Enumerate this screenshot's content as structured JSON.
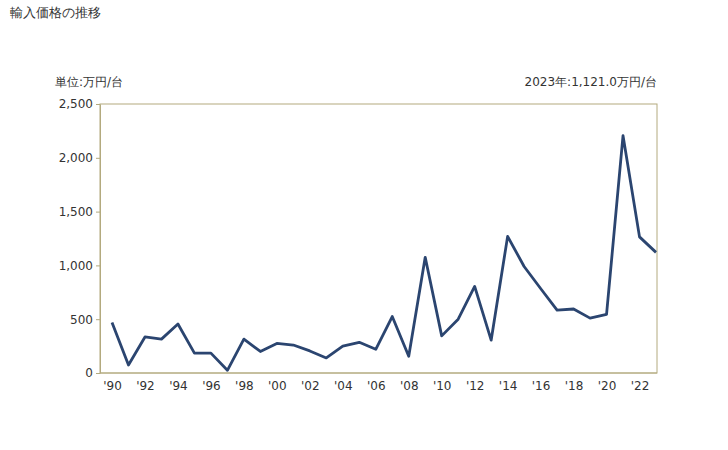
{
  "chart_data": {
    "type": "line",
    "title": "輸入価格の推移",
    "y_label": "単位:万円/台",
    "annotation": "2023年:1,121.0万円/台",
    "categories": [
      "'90",
      null,
      "'92",
      null,
      "'94",
      null,
      "'96",
      null,
      "'98",
      null,
      "'00",
      null,
      "'02",
      null,
      "'04",
      null,
      "'06",
      null,
      "'08",
      null,
      "'10",
      null,
      "'12",
      null,
      "'14",
      null,
      "'16",
      null,
      "'18",
      null,
      "'20",
      null,
      "'22",
      null
    ],
    "values": [
      470,
      75,
      335,
      315,
      455,
      185,
      185,
      25,
      315,
      200,
      275,
      260,
      205,
      140,
      250,
      285,
      220,
      525,
      155,
      1075,
      345,
      500,
      805,
      305,
      1270,
      990,
      785,
      585,
      595,
      510,
      545,
      2205,
      1265,
      1121
    ],
    "color": "#2b4570",
    "ylim": [
      0,
      2500
    ],
    "yticks": [
      0,
      500,
      {
        "value": 1000,
        "label": "1,000"
      },
      {
        "value": 1500,
        "label": "1,500"
      },
      {
        "value": 2000,
        "label": "2,000"
      },
      {
        "value": 2500,
        "label": "2,500"
      }
    ],
    "grid": false
  }
}
